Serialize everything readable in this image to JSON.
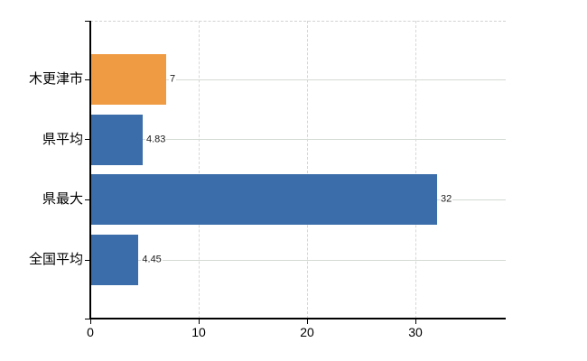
{
  "chart_data": {
    "type": "bar",
    "orientation": "horizontal",
    "title": "",
    "categories": [
      "木更津市",
      "県平均",
      "県最大",
      "全国平均"
    ],
    "values": [
      7,
      4.83,
      32,
      4.45
    ],
    "value_labels": [
      "7",
      "4.83",
      "32",
      "4.45"
    ],
    "bar_colors": [
      "#EF9B43",
      "#3A6DA9",
      "#3A6DA9",
      "#3A6DA9"
    ],
    "x_tick_labels": [
      "0",
      "10",
      "20",
      "30"
    ],
    "x_tick_values": [
      0,
      10,
      20,
      30
    ],
    "xlim": [
      0,
      38.33
    ],
    "grid": true,
    "legend": "none",
    "colors": {
      "highlight_bar": "#EF9B43",
      "default_bar": "#3A6DA9",
      "axis": "#000000",
      "gridline": "#d4dad4",
      "dashed_gridline": "#d6d6d6",
      "background": "#ffffff",
      "text": "#000000"
    }
  }
}
